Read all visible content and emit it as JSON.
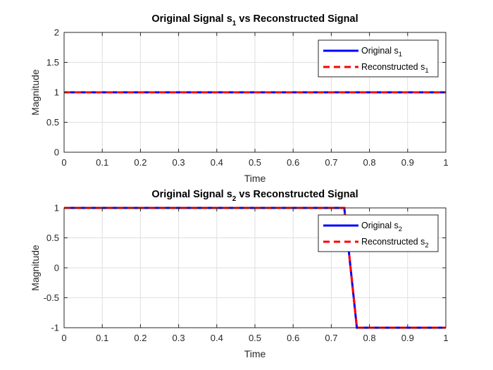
{
  "chart_data": [
    {
      "type": "line",
      "title": "Original Signal s",
      "title_sub": "1",
      "title_suffix": " vs Reconstructed Signal",
      "xlabel": "Time",
      "ylabel": "Magnitude",
      "xlim": [
        0,
        1
      ],
      "ylim": [
        0,
        2
      ],
      "xticks": [
        0,
        0.1,
        0.2,
        0.3,
        0.4,
        0.5,
        0.6,
        0.7,
        0.8,
        0.9,
        1
      ],
      "xtick_labels": [
        "0",
        "0.1",
        "0.2",
        "0.3",
        "0.4",
        "0.5",
        "0.6",
        "0.7",
        "0.8",
        "0.9",
        "1"
      ],
      "yticks": [
        0,
        0.5,
        1,
        1.5,
        2
      ],
      "ytick_labels": [
        "0",
        "0.5",
        "1",
        "1.5",
        "2"
      ],
      "grid": true,
      "legend_position": "top-right",
      "series": [
        {
          "name": "Original s",
          "name_sub": "1",
          "style": "solid",
          "color": "#0000ff",
          "x": [
            0,
            1
          ],
          "y": [
            1,
            1
          ]
        },
        {
          "name": "Reconstructed s",
          "name_sub": "1",
          "style": "dashed",
          "color": "#ff0000",
          "x": [
            0,
            1
          ],
          "y": [
            1,
            1
          ]
        }
      ]
    },
    {
      "type": "line",
      "title": "Original Signal s",
      "title_sub": "2",
      "title_suffix": " vs Reconstructed Signal",
      "xlabel": "Time",
      "ylabel": "Magnitude",
      "xlim": [
        0,
        1
      ],
      "ylim": [
        -1,
        1
      ],
      "xticks": [
        0,
        0.1,
        0.2,
        0.3,
        0.4,
        0.5,
        0.6,
        0.7,
        0.8,
        0.9,
        1
      ],
      "xtick_labels": [
        "0",
        "0.1",
        "0.2",
        "0.3",
        "0.4",
        "0.5",
        "0.6",
        "0.7",
        "0.8",
        "0.9",
        "1"
      ],
      "yticks": [
        -1,
        -0.5,
        0,
        0.5,
        1
      ],
      "ytick_labels": [
        "-1",
        "-0.5",
        "0",
        "0.5",
        "1"
      ],
      "grid": true,
      "legend_position": "top-right",
      "series": [
        {
          "name": "Original s",
          "name_sub": "2",
          "style": "solid",
          "color": "#0000ff",
          "x": [
            0,
            0.734,
            0.767,
            1
          ],
          "y": [
            1,
            1,
            -1,
            -1
          ]
        },
        {
          "name": "Reconstructed s",
          "name_sub": "2",
          "style": "dashed",
          "color": "#ff0000",
          "x": [
            0,
            0.734,
            0.767,
            1
          ],
          "y": [
            1,
            1,
            -1,
            -1
          ]
        }
      ]
    }
  ]
}
